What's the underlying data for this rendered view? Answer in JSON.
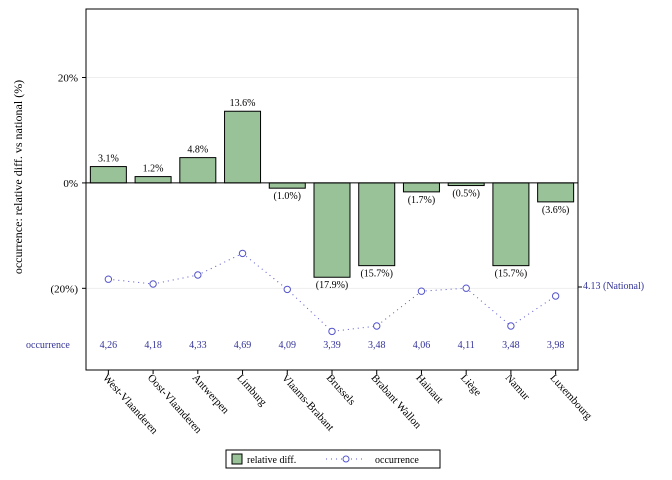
{
  "chart_data": {
    "type": "bar",
    "categories": [
      "West-Vlaanderen",
      "Oost-Vlaanderen",
      "Antwerpen",
      "Limburg",
      "Vlaams-Brabant",
      "Brussels",
      "Brabant Wallon",
      "Hainaut",
      "Liège",
      "Namur",
      "Luxembourg"
    ],
    "series": [
      {
        "name": "relative diff.",
        "values": [
          3.1,
          1.2,
          4.8,
          13.6,
          -1.0,
          -17.9,
          -15.7,
          -1.7,
          -0.5,
          -15.7,
          -3.6
        ],
        "labels": [
          "3.1%",
          "1.2%",
          "4.8%",
          "13.6%",
          "(1.0%)",
          "(17.9%)",
          "(15.7%)",
          "(1.7%)",
          "(0.5%)",
          "(15.7%)",
          "(3.6%)"
        ],
        "color": "#99c299"
      },
      {
        "name": "occurrence",
        "values": [
          4.26,
          4.18,
          4.33,
          4.69,
          4.09,
          3.39,
          3.48,
          4.06,
          4.11,
          3.48,
          3.98
        ],
        "labels": [
          "4,26",
          "4,18",
          "4,33",
          "4,69",
          "4,09",
          "3,39",
          "3,48",
          "4,06",
          "4,11",
          "3,48",
          "3,98"
        ],
        "color": "#5555cc"
      }
    ],
    "ylabel": "occurrence: relative diff. vs national (%)",
    "yticks": [
      {
        "value": 20,
        "label": "20%"
      },
      {
        "value": 0,
        "label": "0%"
      },
      {
        "value": -20,
        "label": "(20%)"
      }
    ],
    "ylim": [
      -35.5,
      33
    ],
    "reference": {
      "value": 4.13,
      "label": "4.13 (National)"
    },
    "occurrence_row_label": "occurrence",
    "legend": {
      "placement": "bottom",
      "items": [
        "relative diff.",
        "occurrence"
      ]
    }
  }
}
